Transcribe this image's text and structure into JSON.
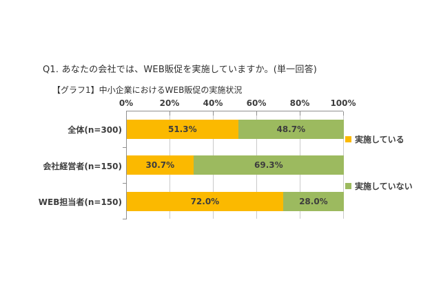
{
  "page": {
    "question_title": "Q1. あなたの会社では、WEB販促を実施していますか。(単一回答)",
    "chart_title": "【グラフ1】中小企業におけるWEB販促の実施状況"
  },
  "chart_data": {
    "type": "bar",
    "orientation": "horizontal",
    "stacked": true,
    "grid": true,
    "title": "【グラフ1】中小企業におけるWEB販促の実施状況",
    "categories": [
      "全体(n=300)",
      "会社経営者(n=150)",
      "WEB担当者(n=150)"
    ],
    "series": [
      {
        "name": "実施している",
        "color": "#fbb900",
        "values": [
          51.3,
          30.7,
          72.0
        ]
      },
      {
        "name": "実施していない",
        "color": "#9cba5f",
        "values": [
          48.7,
          69.3,
          28.0
        ]
      }
    ],
    "value_labels": [
      [
        "51.3%",
        "48.7%"
      ],
      [
        "30.7%",
        "69.3%"
      ],
      [
        "72.0%",
        "28.0%"
      ]
    ],
    "x_axis": {
      "min": 0,
      "max": 100,
      "ticks": [
        "0%",
        "20%",
        "40%",
        "60%",
        "80%",
        "100%"
      ]
    },
    "legend": {
      "position": "right",
      "items": [
        "実施している",
        "実施していない"
      ]
    },
    "colors": {
      "implementing": "#fbb900",
      "not_implementing": "#9cba5f",
      "gridline": "#c9c9c9",
      "axis": "#8e8e8e",
      "text": "#3d3d3d"
    }
  }
}
